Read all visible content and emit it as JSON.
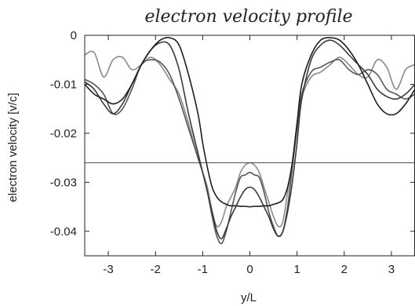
{
  "chart_data": {
    "type": "line",
    "title": "electron velocity profile",
    "xlabel": "y/L",
    "ylabel": "electron velocity [v/c]",
    "xlim": [
      -3.5,
      3.5
    ],
    "ylim": [
      -0.045,
      0
    ],
    "x_ticks": [
      "-3",
      "-2",
      "-1",
      "0",
      "1",
      "2",
      "3"
    ],
    "x_tick_values": [
      -3,
      -2,
      -1,
      0,
      1,
      2,
      3
    ],
    "y_ticks": [
      "0",
      "-0.01",
      "-0.02",
      "-0.03",
      "-0.04"
    ],
    "y_tick_values": [
      0,
      -0.01,
      -0.02,
      -0.03,
      -0.04
    ],
    "grid": false,
    "reference_line": {
      "y": -0.026
    },
    "series": [
      {
        "color": "#8a8a8a",
        "x": [
          -3.5,
          -3.3,
          -3.1,
          -2.9,
          -2.7,
          -2.5,
          -2.3,
          -2.1,
          -1.9,
          -1.7,
          -1.5,
          -1.3,
          -1.1,
          -1.0,
          -0.9,
          -0.8,
          -0.7,
          -0.6,
          -0.5,
          -0.4,
          -0.3,
          -0.2,
          -0.1,
          0.0,
          0.1,
          0.2,
          0.3,
          0.4,
          0.5,
          0.6,
          0.7,
          0.8,
          0.9,
          1.0,
          1.1,
          1.3,
          1.5,
          1.7,
          1.9,
          2.1,
          2.3,
          2.5,
          2.7,
          2.9,
          3.1,
          3.3,
          3.5
        ],
        "y": [
          -0.004,
          -0.0035,
          -0.0085,
          -0.005,
          -0.0045,
          -0.007,
          -0.006,
          -0.0045,
          -0.006,
          -0.009,
          -0.012,
          -0.018,
          -0.025,
          -0.028,
          -0.031,
          -0.036,
          -0.039,
          -0.038,
          -0.035,
          -0.033,
          -0.031,
          -0.028,
          -0.0265,
          -0.026,
          -0.0265,
          -0.028,
          -0.031,
          -0.034,
          -0.037,
          -0.039,
          -0.038,
          -0.032,
          -0.026,
          -0.018,
          -0.0125,
          -0.0085,
          -0.0075,
          -0.006,
          -0.0045,
          -0.006,
          -0.008,
          -0.0085,
          -0.005,
          -0.0065,
          -0.011,
          -0.007,
          -0.006
        ]
      },
      {
        "color": "#555555",
        "x": [
          -3.5,
          -3.3,
          -3.1,
          -2.9,
          -2.7,
          -2.5,
          -2.3,
          -2.1,
          -1.9,
          -1.7,
          -1.5,
          -1.3,
          -1.1,
          -1.0,
          -0.9,
          -0.8,
          -0.7,
          -0.6,
          -0.5,
          -0.4,
          -0.3,
          -0.2,
          -0.1,
          0.0,
          0.1,
          0.2,
          0.3,
          0.4,
          0.5,
          0.6,
          0.7,
          0.8,
          0.9,
          1.0,
          1.1,
          1.3,
          1.5,
          1.7,
          1.9,
          2.1,
          2.3,
          2.5,
          2.7,
          2.9,
          3.1,
          3.3,
          3.5
        ],
        "y": [
          -0.009,
          -0.01,
          -0.012,
          -0.016,
          -0.015,
          -0.011,
          -0.006,
          -0.005,
          -0.0055,
          -0.008,
          -0.013,
          -0.019,
          -0.025,
          -0.028,
          -0.032,
          -0.037,
          -0.041,
          -0.0425,
          -0.04,
          -0.036,
          -0.032,
          -0.029,
          -0.0285,
          -0.028,
          -0.0285,
          -0.029,
          -0.032,
          -0.036,
          -0.039,
          -0.041,
          -0.04,
          -0.035,
          -0.027,
          -0.019,
          -0.012,
          -0.0075,
          -0.0065,
          -0.0055,
          -0.005,
          -0.007,
          -0.008,
          -0.007,
          -0.008,
          -0.011,
          -0.012,
          -0.013,
          -0.012
        ]
      },
      {
        "color": "#3a3a3a",
        "x": [
          -3.5,
          -3.3,
          -3.1,
          -2.9,
          -2.7,
          -2.5,
          -2.3,
          -2.1,
          -1.9,
          -1.7,
          -1.5,
          -1.3,
          -1.1,
          -1.0,
          -0.9,
          -0.8,
          -0.7,
          -0.6,
          -0.5,
          -0.4,
          -0.3,
          -0.2,
          -0.1,
          0.0,
          0.1,
          0.2,
          0.3,
          0.4,
          0.5,
          0.6,
          0.7,
          0.8,
          0.9,
          1.0,
          1.1,
          1.3,
          1.5,
          1.7,
          1.9,
          2.1,
          2.3,
          2.5,
          2.7,
          2.9,
          3.1,
          3.3,
          3.5
        ],
        "y": [
          -0.0095,
          -0.011,
          -0.014,
          -0.016,
          -0.014,
          -0.01,
          -0.006,
          -0.003,
          -0.0015,
          -0.002,
          -0.007,
          -0.016,
          -0.024,
          -0.028,
          -0.032,
          -0.036,
          -0.04,
          -0.0415,
          -0.0395,
          -0.037,
          -0.035,
          -0.033,
          -0.0315,
          -0.031,
          -0.0315,
          -0.033,
          -0.035,
          -0.037,
          -0.0395,
          -0.041,
          -0.04,
          -0.036,
          -0.03,
          -0.022,
          -0.013,
          -0.005,
          -0.002,
          -0.001,
          -0.002,
          -0.004,
          -0.006,
          -0.008,
          -0.011,
          -0.0125,
          -0.013,
          -0.012,
          -0.01
        ]
      },
      {
        "color": "#1e1e1e",
        "x": [
          -3.5,
          -3.3,
          -3.1,
          -2.9,
          -2.7,
          -2.5,
          -2.3,
          -2.1,
          -1.9,
          -1.7,
          -1.5,
          -1.3,
          -1.1,
          -1.0,
          -0.9,
          -0.8,
          -0.7,
          -0.6,
          -0.5,
          -0.4,
          -0.3,
          -0.2,
          -0.1,
          0.0,
          0.1,
          0.2,
          0.3,
          0.4,
          0.5,
          0.6,
          0.7,
          0.8,
          0.9,
          1.0,
          1.1,
          1.3,
          1.5,
          1.7,
          1.9,
          2.1,
          2.3,
          2.5,
          2.7,
          2.9,
          3.1,
          3.3,
          3.5
        ],
        "y": [
          -0.01,
          -0.012,
          -0.013,
          -0.014,
          -0.013,
          -0.01,
          -0.006,
          -0.003,
          -0.001,
          -0.0005,
          -0.002,
          -0.008,
          -0.016,
          -0.022,
          -0.027,
          -0.031,
          -0.033,
          -0.034,
          -0.0345,
          -0.0348,
          -0.0348,
          -0.0349,
          -0.0349,
          -0.035,
          -0.0349,
          -0.0349,
          -0.0348,
          -0.0348,
          -0.0345,
          -0.0342,
          -0.0335,
          -0.031,
          -0.026,
          -0.018,
          -0.01,
          -0.004,
          -0.001,
          -0.0005,
          -0.001,
          -0.003,
          -0.006,
          -0.01,
          -0.014,
          -0.016,
          -0.016,
          -0.014,
          -0.011
        ]
      }
    ]
  }
}
